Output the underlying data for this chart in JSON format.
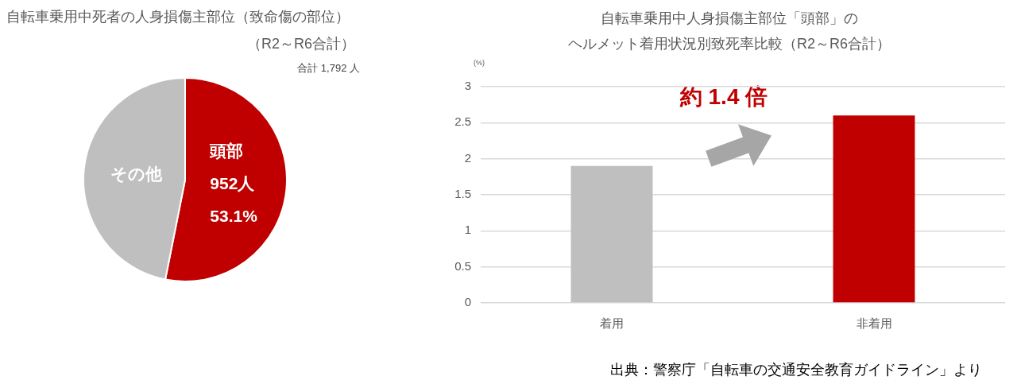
{
  "chart_data": [
    {
      "type": "pie",
      "title": "自転車乗用中死者の人身損傷主部位（致命傷の部位）",
      "subtitle": "（R2～R6合計）",
      "annotations": [
        "合計 1,792 人"
      ],
      "categories": [
        "頭部",
        "その他"
      ],
      "values": [
        952,
        840
      ],
      "colors": [
        "#c00000",
        "#bfbfbf"
      ],
      "value_labels": [
        "952人\n53.1%",
        null
      ]
    },
    {
      "type": "bar",
      "title": "自転車乗用中人身損傷主部位「頭部」の",
      "subtitle": "ヘルメット着用状況別致死率比較（R2～R6合計）",
      "ylabel": "(%)",
      "categories": [
        "着用",
        "非着用"
      ],
      "values": [
        1.9,
        2.6
      ],
      "colors": [
        "#bfbfbf",
        "#c00000"
      ],
      "ylim": [
        0,
        3
      ],
      "yticks": [
        0,
        0.5,
        1,
        1.5,
        2,
        2.5,
        3
      ],
      "grid": "y",
      "annotations": [
        "約 1.4 倍",
        "出典：警察庁「自転車の交通安全教育ガイドライン」より"
      ]
    }
  ]
}
